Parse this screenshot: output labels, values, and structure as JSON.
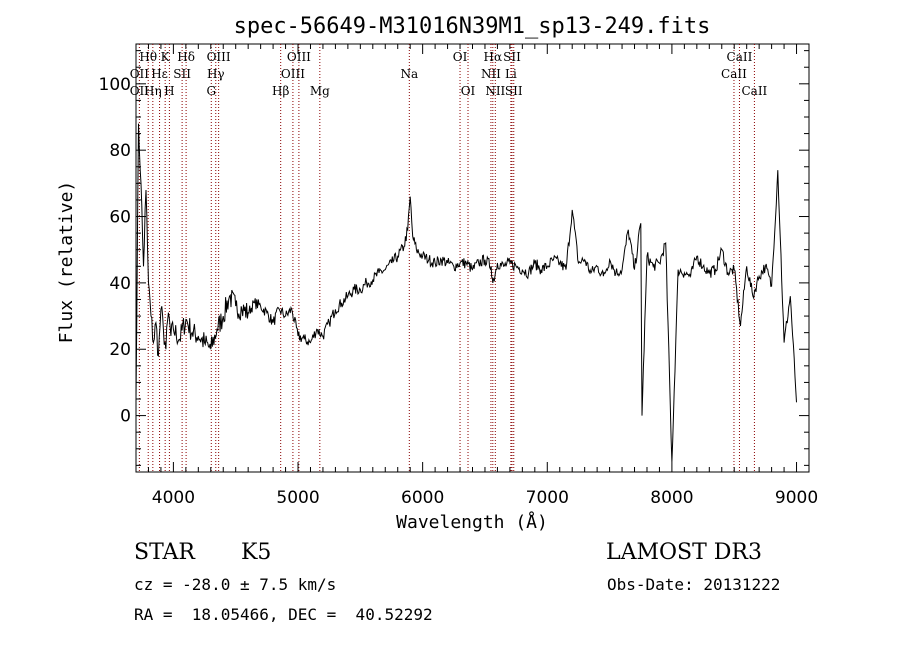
{
  "chart_data": {
    "type": "line",
    "title": "spec-56649-M31016N39M1_sp13-249.fits",
    "xlabel": "Wavelength (Å)",
    "ylabel": "Flux (relative)",
    "xlim": [
      3700,
      9100
    ],
    "ylim": [
      -17,
      112
    ],
    "xticks": [
      4000,
      5000,
      6000,
      7000,
      8000,
      9000
    ],
    "yticks": [
      0,
      20,
      40,
      60,
      80,
      100
    ],
    "grid": false,
    "line_color": "#000000",
    "marker_color": "#8b0000",
    "spectrum": {
      "x": [
        3700,
        3720,
        3740,
        3760,
        3780,
        3800,
        3820,
        3840,
        3860,
        3880,
        3900,
        3920,
        3940,
        3960,
        3980,
        4000,
        4050,
        4100,
        4150,
        4200,
        4250,
        4300,
        4350,
        4400,
        4450,
        4500,
        4550,
        4600,
        4650,
        4700,
        4750,
        4800,
        4850,
        4900,
        4950,
        5000,
        5050,
        5100,
        5150,
        5200,
        5250,
        5300,
        5350,
        5400,
        5450,
        5500,
        5550,
        5600,
        5650,
        5700,
        5750,
        5800,
        5850,
        5880,
        5900,
        5920,
        5950,
        6000,
        6050,
        6100,
        6150,
        6200,
        6250,
        6300,
        6350,
        6400,
        6450,
        6500,
        6550,
        6563,
        6600,
        6650,
        6700,
        6750,
        6800,
        6850,
        6900,
        6950,
        7000,
        7050,
        7100,
        7150,
        7200,
        7250,
        7300,
        7350,
        7400,
        7450,
        7500,
        7550,
        7600,
        7650,
        7700,
        7750,
        7760,
        7800,
        7850,
        7900,
        7950,
        8000,
        8050,
        8100,
        8150,
        8200,
        8250,
        8300,
        8350,
        8400,
        8450,
        8500,
        8550,
        8600,
        8650,
        8700,
        8750,
        8800,
        8850,
        8900,
        8950,
        9000
      ],
      "y": [
        5,
        88,
        70,
        45,
        68,
        40,
        30,
        22,
        28,
        18,
        32,
        26,
        20,
        31,
        24,
        26,
        23,
        29,
        25,
        24,
        22,
        20,
        26,
        30,
        36,
        33,
        32,
        31,
        34,
        33,
        31,
        28,
        32,
        30,
        32,
        24,
        23,
        22,
        26,
        24,
        28,
        32,
        34,
        36,
        38,
        38,
        40,
        41,
        43,
        44,
        46,
        48,
        51,
        56,
        66,
        54,
        50,
        48,
        47,
        46,
        47,
        46,
        45,
        46,
        46,
        44,
        46,
        47,
        45,
        40,
        46,
        45,
        46,
        45,
        44,
        43,
        46,
        44,
        45,
        47,
        46,
        44,
        62,
        46,
        47,
        43,
        45,
        42,
        47,
        43,
        44,
        56,
        44,
        58,
        0,
        48,
        45,
        46,
        52,
        -14,
        44,
        43,
        42,
        48,
        45,
        43,
        44,
        50,
        43,
        44,
        27,
        45,
        36,
        42,
        45,
        39,
        74,
        22,
        36,
        4
      ]
    },
    "lines_row1": [
      {
        "label": "Hθ",
        "x": 3798
      },
      {
        "label": "K",
        "x": 3934
      },
      {
        "label": "Hδ",
        "x": 4102
      },
      {
        "label": "OIII",
        "x": 4363
      },
      {
        "label": "OIII",
        "x": 5007
      },
      {
        "label": "OI",
        "x": 6300
      },
      {
        "label": "Hα",
        "x": 6563
      },
      {
        "label": "SII",
        "x": 6717
      },
      {
        "label": "CaII",
        "x": 8542
      }
    ],
    "lines_row2": [
      {
        "label": "OII",
        "x": 3727
      },
      {
        "label": "Hε",
        "x": 3889
      },
      {
        "label": "SII",
        "x": 4070
      },
      {
        "label": "Hγ",
        "x": 4340
      },
      {
        "label": "OIII",
        "x": 4959
      },
      {
        "label": "Na",
        "x": 5893
      },
      {
        "label": "NII",
        "x": 6548
      },
      {
        "label": "Li",
        "x": 6708
      },
      {
        "label": "CaII",
        "x": 8498
      }
    ],
    "lines_row3": [
      {
        "label": "OII",
        "x": 3727
      },
      {
        "label": "Hη",
        "x": 3835
      },
      {
        "label": "H",
        "x": 3968
      },
      {
        "label": "G",
        "x": 4304
      },
      {
        "label": "Hβ",
        "x": 4861
      },
      {
        "label": "Mg",
        "x": 5175
      },
      {
        "label": "OI",
        "x": 6364
      },
      {
        "label": "NII",
        "x": 6583
      },
      {
        "label": "SII",
        "x": 6731
      },
      {
        "label": "CaII",
        "x": 8662
      }
    ],
    "marker_positions": [
      3727,
      3798,
      3835,
      3889,
      3934,
      3968,
      4070,
      4102,
      4304,
      4340,
      4363,
      4861,
      4959,
      5007,
      5175,
      5893,
      6300,
      6364,
      6548,
      6563,
      6583,
      6708,
      6717,
      6731,
      8498,
      8542,
      8662
    ]
  },
  "info": {
    "class_label": "STAR",
    "subclass_label": "K5",
    "survey_label": "LAMOST DR3",
    "cz_text": "cz = -28.0 ± 7.5 km/s",
    "obs_date_text": "Obs-Date: 20131222",
    "coords_text": "RA =  18.05466, DEC =  40.52292"
  }
}
